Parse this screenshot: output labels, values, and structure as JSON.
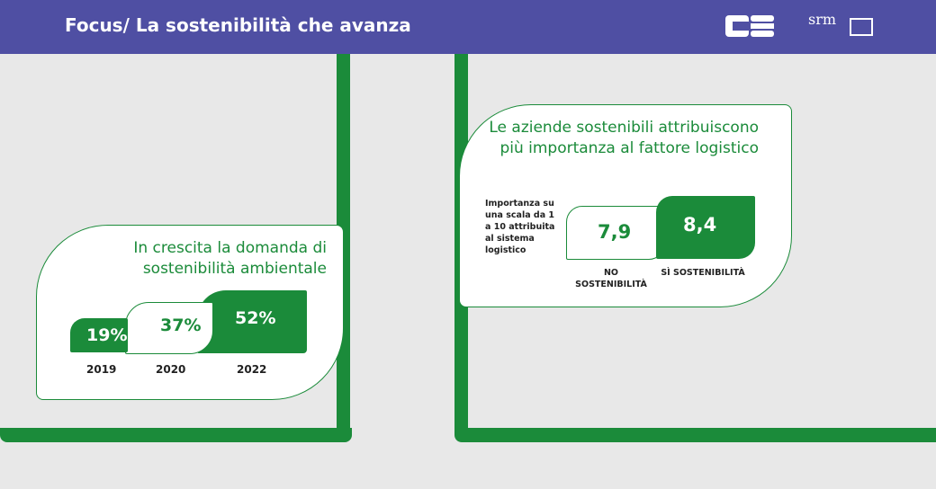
{
  "header": {
    "title": "Focus/ La sostenibilità che avanza",
    "logo_cs": "CS",
    "logo_srm": "srm",
    "colors": {
      "bar": "#4f4fa3",
      "green": "#1b8b3a"
    }
  },
  "chart_data": [
    {
      "type": "bar",
      "title": "In crescita la domanda di sostenibilità ambientale",
      "categories": [
        "2019",
        "2020",
        "2022"
      ],
      "values": [
        19,
        37,
        52
      ],
      "value_labels": [
        "19%",
        "37%",
        "52%"
      ],
      "ylim": [
        0,
        100
      ]
    },
    {
      "type": "bar",
      "title": "Le aziende sostenibili attribuiscono più importanza al fattore logistico",
      "note": "Importanza su una scala da 1 a 10 attribuita al sistema logistico",
      "categories": [
        "NO SOSTENIBILITÀ",
        "SÌ SOSTENIBILITÀ"
      ],
      "values": [
        7.9,
        8.4
      ],
      "value_labels": [
        "7,9",
        "8,4"
      ],
      "ylim": [
        1,
        10
      ]
    }
  ]
}
